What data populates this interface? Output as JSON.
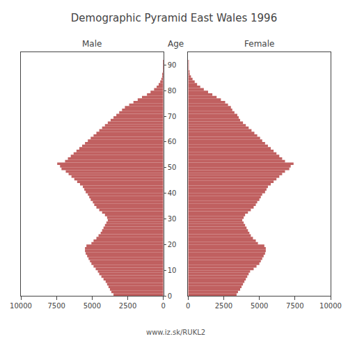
{
  "chart_data": {
    "type": "bar",
    "orientation": "horizontal",
    "title": "Demographic Pyramid East Wales 1996",
    "ylabel": "Age",
    "annotations": [
      "www.iz.sk/RUKL2"
    ],
    "categories": [
      0,
      1,
      2,
      3,
      4,
      5,
      6,
      7,
      8,
      9,
      10,
      11,
      12,
      13,
      14,
      15,
      16,
      17,
      18,
      19,
      20,
      21,
      22,
      23,
      24,
      25,
      26,
      27,
      28,
      29,
      30,
      31,
      32,
      33,
      34,
      35,
      36,
      37,
      38,
      39,
      40,
      41,
      42,
      43,
      44,
      45,
      46,
      47,
      48,
      49,
      50,
      51,
      52,
      53,
      54,
      55,
      56,
      57,
      58,
      59,
      60,
      61,
      62,
      63,
      64,
      65,
      66,
      67,
      68,
      69,
      70,
      71,
      72,
      73,
      74,
      75,
      76,
      77,
      78,
      79,
      80,
      81,
      82,
      83,
      84,
      85,
      86,
      87,
      88,
      89,
      90,
      91,
      92,
      93,
      94
    ],
    "series": [
      {
        "name": "Male",
        "color": "#c06060",
        "values": [
          3500,
          3650,
          3750,
          3850,
          3950,
          4050,
          4200,
          4350,
          4500,
          4600,
          4750,
          4900,
          5050,
          5150,
          5250,
          5350,
          5450,
          5500,
          5500,
          5400,
          5050,
          4900,
          4700,
          4550,
          4400,
          4300,
          4200,
          4100,
          4000,
          3900,
          3950,
          4100,
          4300,
          4500,
          4700,
          4850,
          4950,
          5100,
          5200,
          5300,
          5450,
          5550,
          5650,
          5850,
          6050,
          6250,
          6450,
          6650,
          6850,
          7150,
          7250,
          7450,
          6900,
          6700,
          6500,
          6300,
          6100,
          5900,
          5700,
          5500,
          5300,
          5100,
          4900,
          4700,
          4500,
          4300,
          4100,
          3900,
          3700,
          3500,
          3300,
          3100,
          2900,
          2700,
          2400,
          2100,
          1800,
          1500,
          1150,
          900,
          650,
          470,
          330,
          220,
          140,
          85,
          48,
          27,
          13,
          5,
          2,
          1,
          0,
          0,
          0
        ]
      },
      {
        "name": "Female",
        "color": "#c06060",
        "values": [
          3400,
          3500,
          3650,
          3750,
          3850,
          3950,
          4050,
          4150,
          4250,
          4350,
          4600,
          4800,
          5000,
          5100,
          5200,
          5300,
          5400,
          5450,
          5450,
          5350,
          4900,
          4750,
          4550,
          4400,
          4300,
          4200,
          4100,
          4000,
          3900,
          3800,
          3900,
          4000,
          4200,
          4400,
          4600,
          4750,
          4850,
          5000,
          5100,
          5200,
          5400,
          5500,
          5600,
          5800,
          6000,
          6200,
          6400,
          6600,
          6800,
          7100,
          7200,
          7400,
          6800,
          6600,
          6400,
          6200,
          6000,
          5800,
          5600,
          5400,
          5200,
          5050,
          4850,
          4650,
          4450,
          4250,
          4050,
          3850,
          3650,
          3550,
          3450,
          3250,
          3100,
          3000,
          2800,
          2600,
          2300,
          2000,
          1700,
          1400,
          1100,
          850,
          630,
          460,
          310,
          200,
          110,
          58,
          25,
          10,
          3,
          1,
          0,
          0,
          0
        ]
      }
    ],
    "xlim": [
      0,
      10000
    ],
    "xticks": [
      0,
      2500,
      5000,
      7500,
      10000
    ],
    "ylim": [
      0,
      95
    ],
    "yticks": [
      0,
      10,
      20,
      30,
      40,
      50,
      60,
      70,
      80,
      90
    ],
    "grid": false
  }
}
